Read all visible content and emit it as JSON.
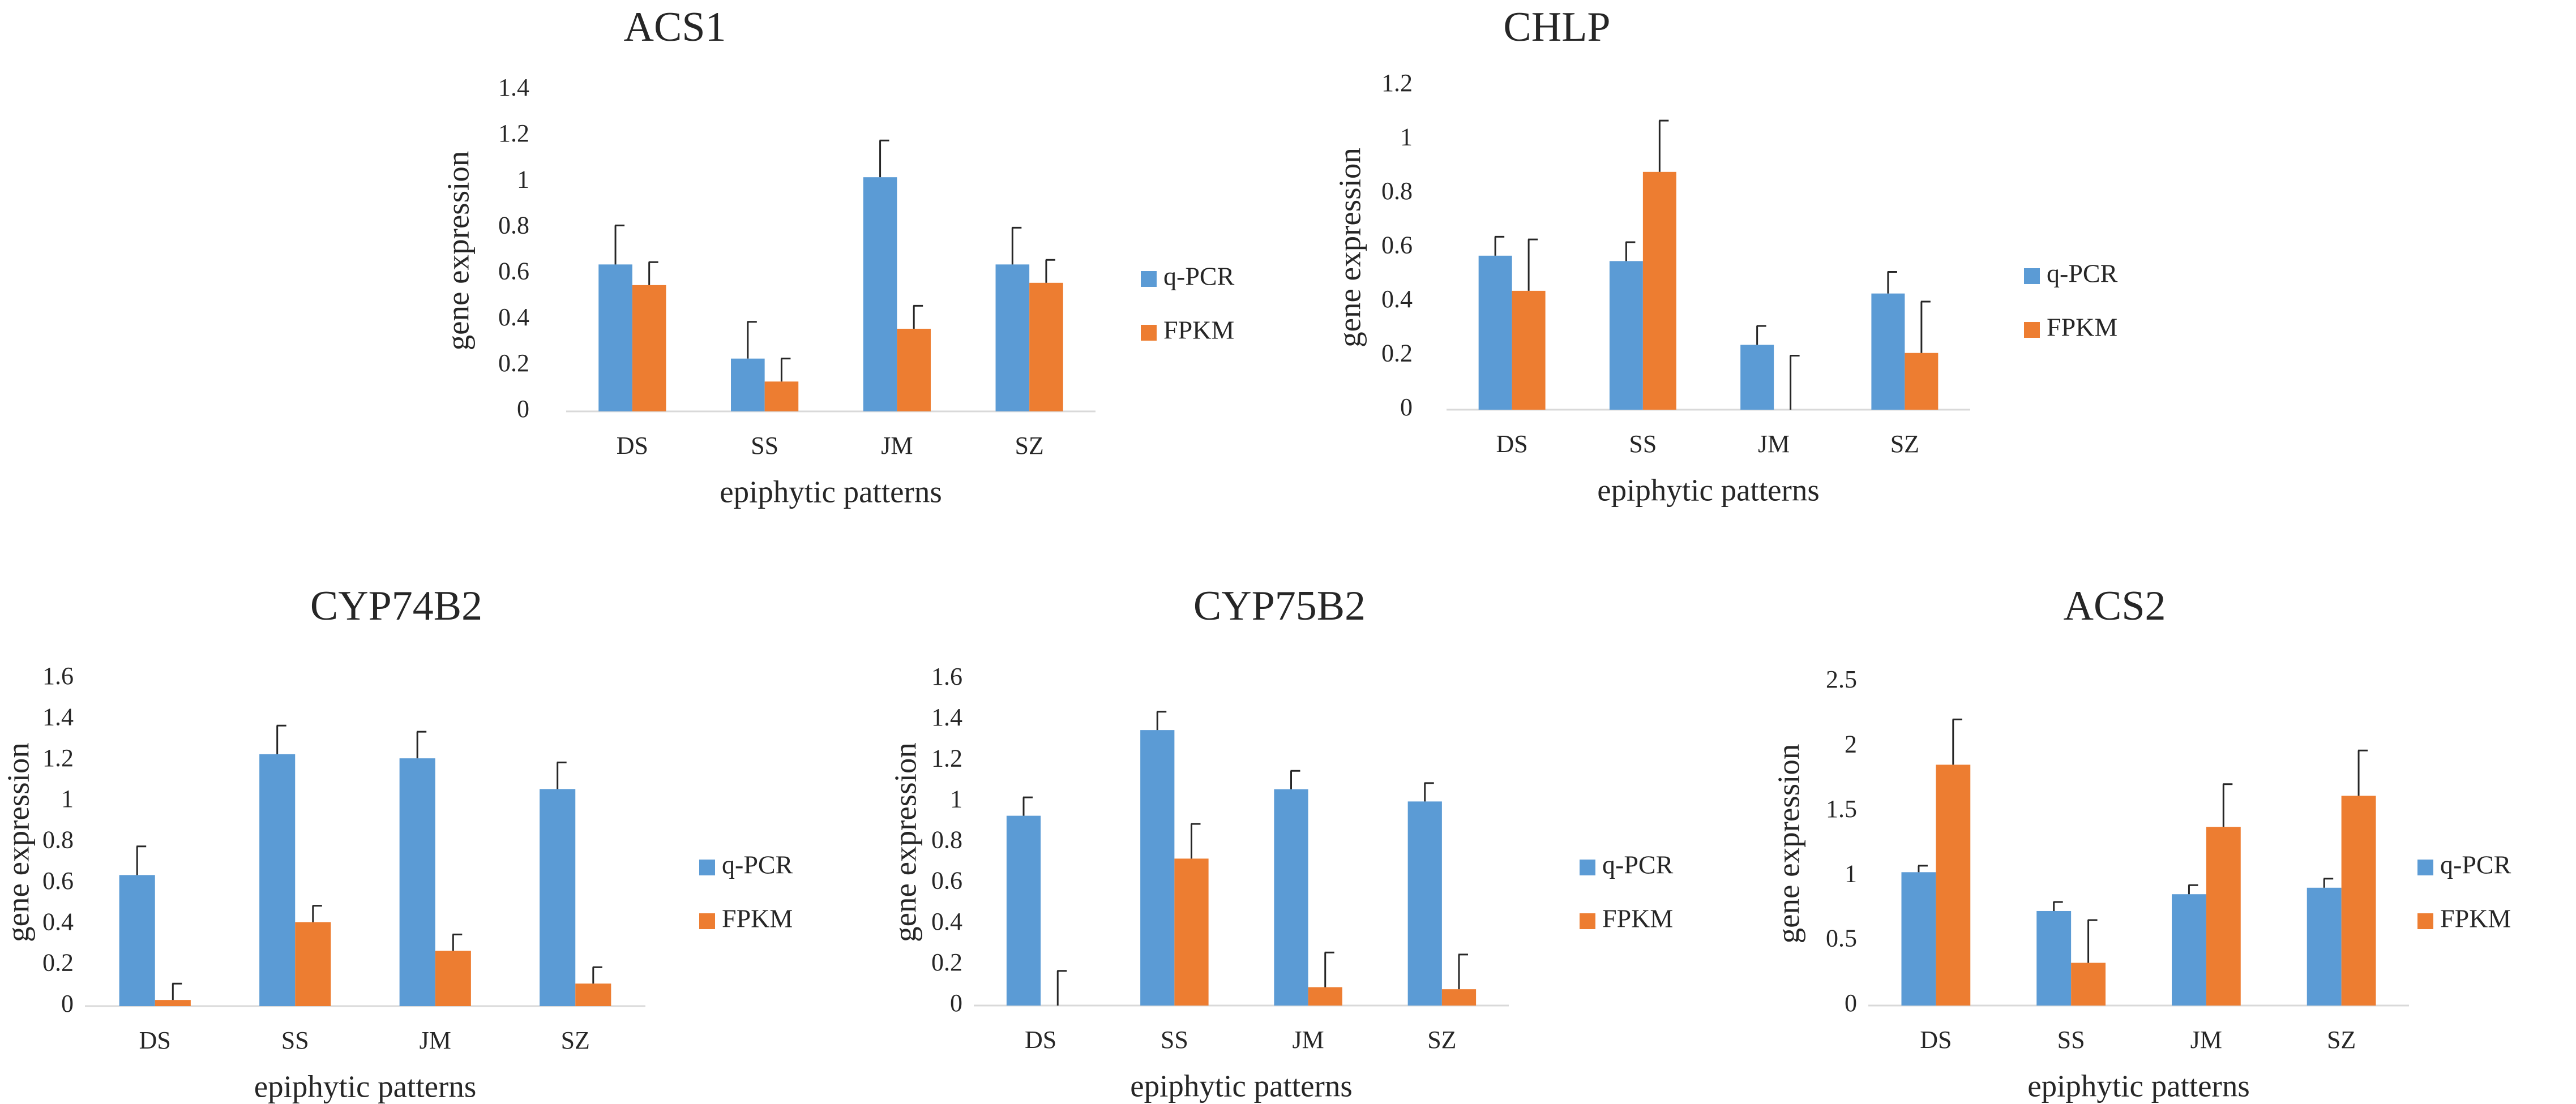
{
  "colors": {
    "q_pcr": "#5B9BD5",
    "fpkm": "#ED7D31",
    "axis": "#d9d9d9",
    "error_bar": "#262626"
  },
  "chart_data": [
    {
      "type": "bar",
      "title": "ACS1",
      "xlabel": "epiphytic patterns",
      "ylabel": "gene expression",
      "categories": [
        "DS",
        "SS",
        "JM",
        "SZ"
      ],
      "ylim": [
        0,
        1.4
      ],
      "yticks": [
        "0",
        "0.2",
        "0.4",
        "0.6",
        "0.8",
        "1",
        "1.2",
        "1.4"
      ],
      "legend": "right",
      "series": [
        {
          "name": "q-PCR",
          "values": [
            0.64,
            0.23,
            1.02,
            0.64
          ],
          "errors": [
            0.17,
            0.16,
            0.16,
            0.16
          ]
        },
        {
          "name": "FPKM",
          "values": [
            0.55,
            0.13,
            0.36,
            0.56
          ],
          "errors": [
            0.1,
            0.1,
            0.1,
            0.1
          ]
        }
      ]
    },
    {
      "type": "bar",
      "title": "CHLP",
      "xlabel": "epiphytic patterns",
      "ylabel": "gene expression",
      "categories": [
        "DS",
        "SS",
        "JM",
        "SZ"
      ],
      "ylim": [
        0,
        1.2
      ],
      "yticks": [
        "0",
        "0.2",
        "0.4",
        "0.6",
        "0.8",
        "1",
        "1.2"
      ],
      "legend": "right",
      "series": [
        {
          "name": "q-PCR",
          "values": [
            0.57,
            0.55,
            0.24,
            0.43
          ],
          "errors": [
            0.07,
            0.07,
            0.07,
            0.08
          ]
        },
        {
          "name": "FPKM",
          "values": [
            0.44,
            0.88,
            0.0,
            0.21
          ],
          "errors": [
            0.19,
            0.19,
            0.2,
            0.19
          ]
        }
      ]
    },
    {
      "type": "bar",
      "title": "CYP74B2",
      "xlabel": "epiphytic patterns",
      "ylabel": "gene expression",
      "categories": [
        "DS",
        "SS",
        "JM",
        "SZ"
      ],
      "ylim": [
        0,
        1.6
      ],
      "yticks": [
        "0",
        "0.2",
        "0.4",
        "0.6",
        "0.8",
        "1",
        "1.2",
        "1.4",
        "1.6"
      ],
      "legend": "right",
      "series": [
        {
          "name": "q-PCR",
          "values": [
            0.64,
            1.23,
            1.21,
            1.06
          ],
          "errors": [
            0.14,
            0.14,
            0.13,
            0.13
          ]
        },
        {
          "name": "FPKM",
          "values": [
            0.03,
            0.41,
            0.27,
            0.11
          ],
          "errors": [
            0.08,
            0.08,
            0.08,
            0.08
          ]
        }
      ]
    },
    {
      "type": "bar",
      "title": "CYP75B2",
      "xlabel": "epiphytic patterns",
      "ylabel": "gene expression",
      "categories": [
        "DS",
        "SS",
        "JM",
        "SZ"
      ],
      "ylim": [
        0,
        1.6
      ],
      "yticks": [
        "0",
        "0.2",
        "0.4",
        "0.6",
        "0.8",
        "1",
        "1.2",
        "1.4",
        "1.6"
      ],
      "legend": "right",
      "series": [
        {
          "name": "q-PCR",
          "values": [
            0.93,
            1.35,
            1.06,
            1.0
          ],
          "errors": [
            0.09,
            0.09,
            0.09,
            0.09
          ]
        },
        {
          "name": "FPKM",
          "values": [
            0.0,
            0.72,
            0.09,
            0.08
          ],
          "errors": [
            0.17,
            0.17,
            0.17,
            0.17
          ]
        }
      ]
    },
    {
      "type": "bar",
      "title": "ACS2",
      "xlabel": "epiphytic patterns",
      "ylabel": "gene expression",
      "categories": [
        "DS",
        "SS",
        "JM",
        "SZ"
      ],
      "ylim": [
        0,
        2.5
      ],
      "yticks": [
        "0",
        "0.5",
        "1",
        "1.5",
        "2",
        "2.5"
      ],
      "legend": "right",
      "series": [
        {
          "name": "q-PCR",
          "values": [
            1.03,
            0.73,
            0.86,
            0.91
          ],
          "errors": [
            0.05,
            0.07,
            0.07,
            0.07
          ]
        },
        {
          "name": "FPKM",
          "values": [
            1.86,
            0.33,
            1.38,
            1.62
          ],
          "errors": [
            0.35,
            0.33,
            0.33,
            0.35
          ]
        }
      ]
    }
  ]
}
